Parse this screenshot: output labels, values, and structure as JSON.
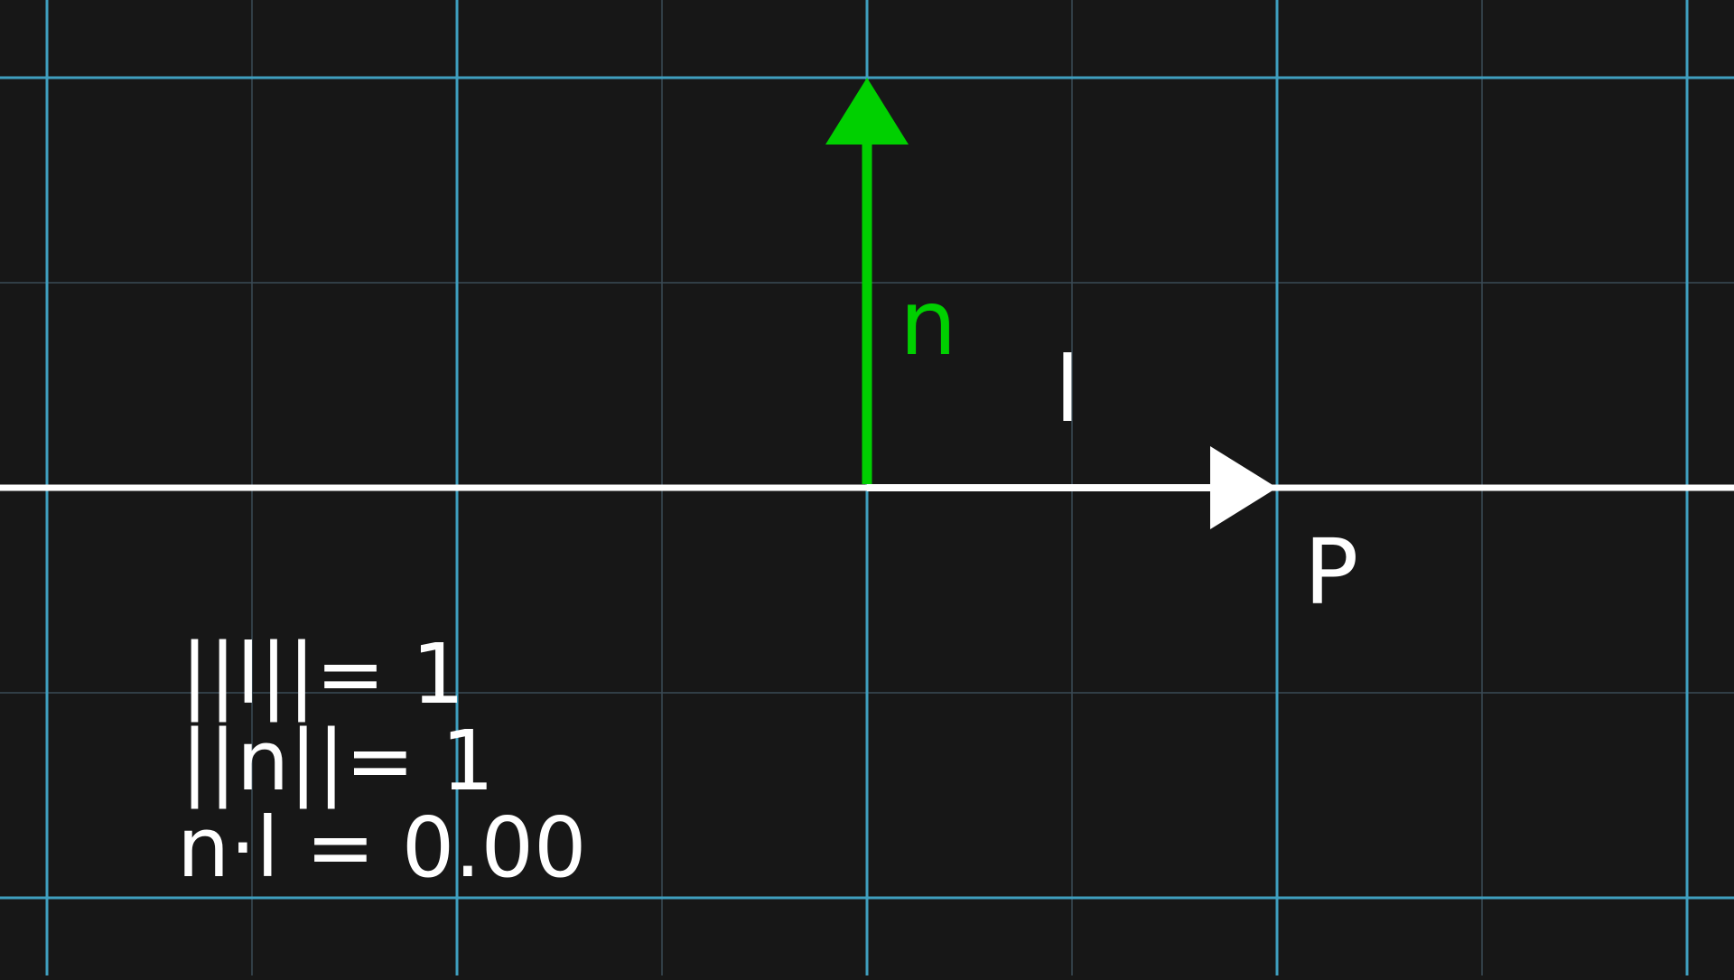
{
  "colors": {
    "background": "#171717",
    "major_grid": "#3f9fbf",
    "minor_grid": "#3a4b57",
    "line": "#ffffff",
    "normal_vector": "#00d000",
    "light_vector": "#ffffff"
  },
  "labels": {
    "normal": "n",
    "light": "l",
    "point": "P"
  },
  "equations": {
    "line1": "||l||= 1",
    "line2": "||n||= 1",
    "line3": "n·l = 0.00"
  },
  "values": {
    "l_magnitude": 1,
    "n_magnitude": 1,
    "dot_product": 0.0
  }
}
